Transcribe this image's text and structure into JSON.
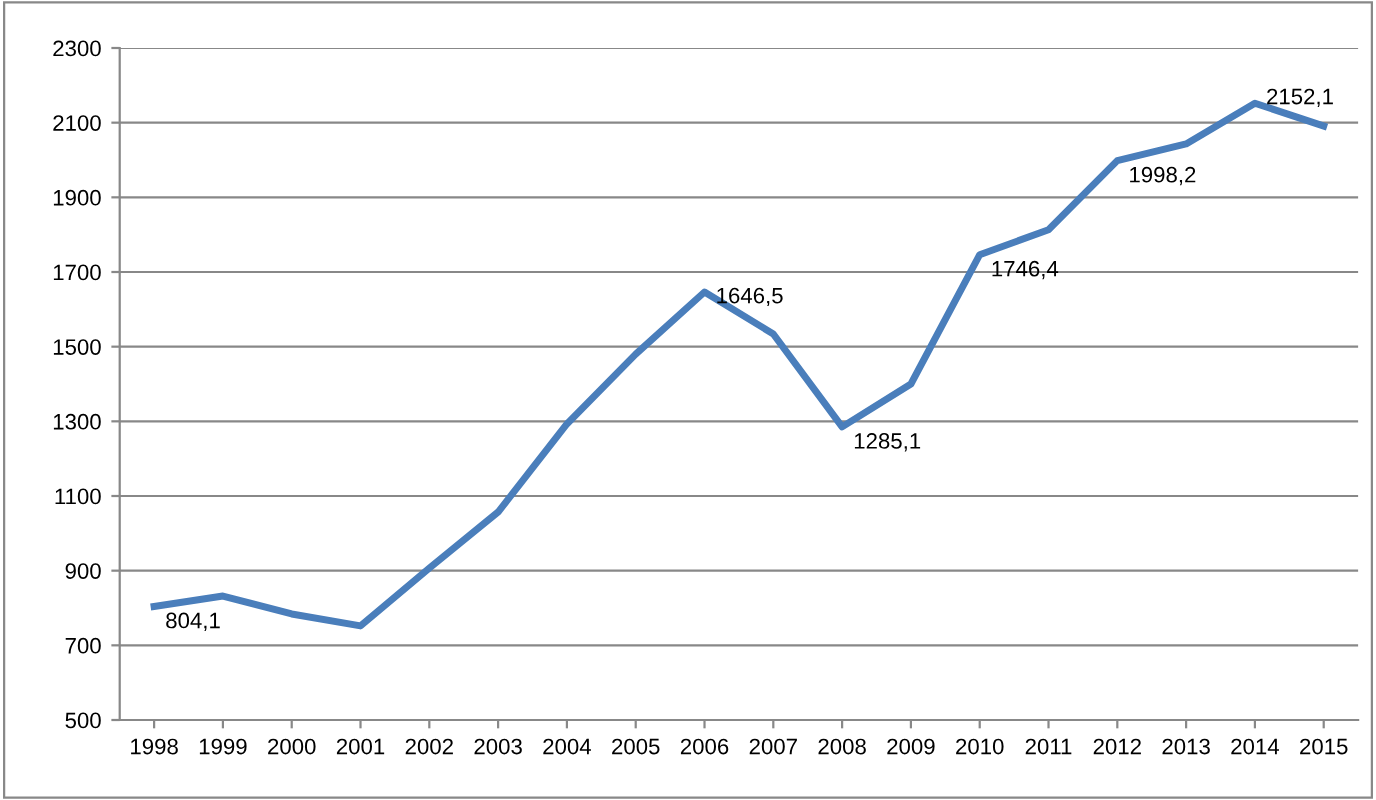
{
  "chart_data": {
    "type": "line",
    "categories": [
      "1998",
      "1999",
      "2000",
      "2001",
      "2002",
      "2003",
      "2004",
      "2005",
      "2006",
      "2007",
      "2008",
      "2009",
      "2010",
      "2011",
      "2012",
      "2013",
      "2014",
      "2015"
    ],
    "series": [
      {
        "color": "#4a7ebb",
        "values": [
          804.1,
          832,
          784,
          752,
          907,
          1057,
          1293,
          1480,
          1646.5,
          1534,
          1285.1,
          1400,
          1746.4,
          1813,
          1998.2,
          2043,
          2152.1,
          2091
        ],
        "value_labels": [
          "804,1",
          null,
          null,
          null,
          null,
          null,
          null,
          null,
          "1646,5",
          null,
          "1285,1",
          null,
          "1746,4",
          null,
          "1998,2",
          null,
          "2152,1",
          null
        ]
      }
    ],
    "ylim": [
      500,
      2300
    ],
    "yticks": [
      500,
      700,
      900,
      1100,
      1300,
      1500,
      1700,
      1900,
      2100,
      2300
    ],
    "grid": "y",
    "marker": "none",
    "line_style": "solid",
    "legend": false
  }
}
